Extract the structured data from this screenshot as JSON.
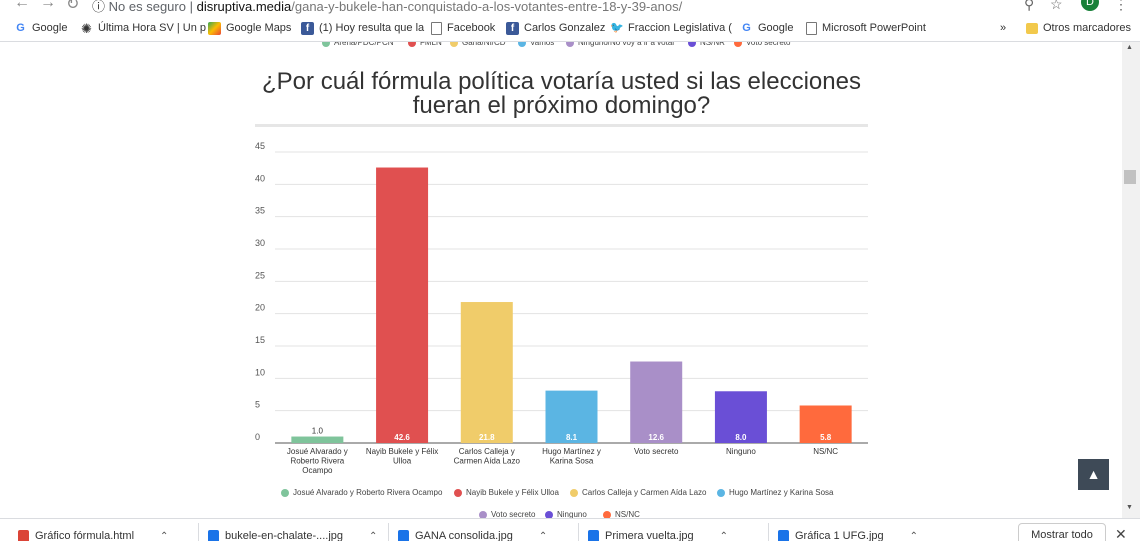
{
  "browser": {
    "security": "No es seguro",
    "host": "disruptiva.media",
    "path": "/gana-y-bukele-han-conquistado-a-los-votantes-entre-18-y-39-anos/",
    "avatar_letter": "D"
  },
  "bookmarks": [
    {
      "label": "Google",
      "icon": "google-icon"
    },
    {
      "label": "Última Hora SV | Un p",
      "icon": "news-icon"
    },
    {
      "label": "Google Maps",
      "icon": "maps-icon"
    },
    {
      "label": "(1) Hoy resulta que la",
      "icon": "facebook-icon"
    },
    {
      "label": "Facebook",
      "icon": "document-icon"
    },
    {
      "label": "Carlos Gonzalez",
      "icon": "facebook-icon"
    },
    {
      "label": "Fraccion Legislativa (",
      "icon": "twitter-icon"
    },
    {
      "label": "Google",
      "icon": "google-icon"
    },
    {
      "label": "Microsoft PowerPoint",
      "icon": "document-icon"
    }
  ],
  "bookmarks_more": "»",
  "other_bookmarks": "Otros marcadores",
  "legend_top": [
    {
      "label": "Arena/PDC/PCN",
      "color": "#7fc49b"
    },
    {
      "label": "FMLN",
      "color": "#e05050"
    },
    {
      "label": "Gana/NI/CD",
      "color": "#f0cc6a"
    },
    {
      "label": "Vamos",
      "color": "#5bb5e3"
    },
    {
      "label": "Ninguno/No voy a ir a votar",
      "color": "#a98fc8"
    },
    {
      "label": "NS/NR",
      "color": "#6a4fd6"
    },
    {
      "label": "Voto secreto",
      "color": "#ff6a3d"
    }
  ],
  "chart_data": {
    "type": "bar",
    "title_line1": "¿Por cuál fórmula política votaría usted si las elecciones",
    "title_line2": "fueran el próximo domingo?",
    "ylim": [
      0,
      45
    ],
    "yticks": [
      0,
      5,
      10,
      15,
      20,
      25,
      30,
      35,
      40,
      45
    ],
    "grid": true,
    "categories": [
      {
        "lines": [
          "Josué Alvarado y",
          "Roberto Rivera",
          "Ocampo"
        ]
      },
      {
        "lines": [
          "Nayib Bukele y Félix",
          "Ulloa"
        ]
      },
      {
        "lines": [
          "Carlos Calleja y",
          "Carmen Aída Lazo"
        ]
      },
      {
        "lines": [
          "Hugo Martínez y",
          "Karina Sosa"
        ]
      },
      {
        "lines": [
          "Voto secreto"
        ]
      },
      {
        "lines": [
          "Ninguno"
        ]
      },
      {
        "lines": [
          "NS/NC"
        ]
      }
    ],
    "values": [
      1.0,
      42.6,
      21.8,
      8.1,
      12.6,
      8.0,
      5.8
    ],
    "value_labels": [
      "1.0",
      "42.6",
      "21.8",
      "8.1",
      "12.6",
      "8.0",
      "5.8"
    ],
    "colors": [
      "#7fc49b",
      "#e05050",
      "#f0cc6a",
      "#5bb5e3",
      "#a98fc8",
      "#6a4fd6",
      "#ff6a3d"
    ]
  },
  "legend_bottom": [
    {
      "label": "Josué Alvarado y Roberto Rivera Ocampo",
      "color": "#7fc49b"
    },
    {
      "label": "Nayib Bukele y Félix Ulloa",
      "color": "#e05050"
    },
    {
      "label": "Carlos Calleja y Carmen Aída Lazo",
      "color": "#f0cc6a"
    },
    {
      "label": "Hugo Martínez y Karina Sosa",
      "color": "#5bb5e3"
    },
    {
      "label": "Voto secreto",
      "color": "#a98fc8"
    },
    {
      "label": "Ninguno",
      "color": "#6a4fd6"
    },
    {
      "label": "NS/NC",
      "color": "#ff6a3d"
    }
  ],
  "downloads": [
    {
      "label": "Gráfico fórmula.html",
      "icon": "chrome-file-icon",
      "color": "#db4437"
    },
    {
      "label": "bukele-en-chalate-....jpg",
      "icon": "image-file-icon",
      "color": "#1a73e8"
    },
    {
      "label": "GANA consolida.jpg",
      "icon": "image-file-icon",
      "color": "#1a73e8"
    },
    {
      "label": "Primera vuelta.jpg",
      "icon": "image-file-icon",
      "color": "#1a73e8"
    },
    {
      "label": "Gráfica 1 UFG.jpg",
      "icon": "image-file-icon",
      "color": "#1a73e8"
    }
  ],
  "show_all": "Mostrar todo",
  "close_symbol": "✕",
  "scroll_top_symbol": "▲"
}
